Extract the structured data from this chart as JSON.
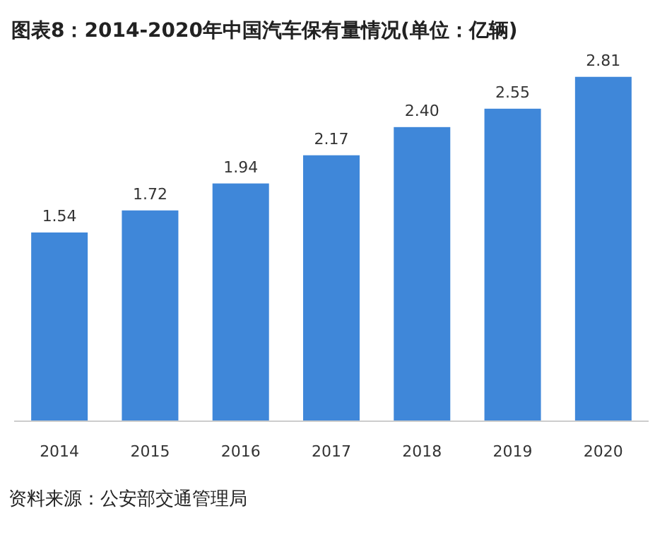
{
  "chart_data": {
    "type": "bar",
    "title": "图表8：2014-2020年中国汽车保有量情况(单位：亿辆)",
    "categories": [
      "2014",
      "2015",
      "2016",
      "2017",
      "2018",
      "2019",
      "2020"
    ],
    "values": [
      1.54,
      1.72,
      1.94,
      2.17,
      2.4,
      2.55,
      2.81
    ],
    "value_labels": [
      "1.54",
      "1.72",
      "1.94",
      "2.17",
      "2.40",
      "2.55",
      "2.81"
    ],
    "color": "#3f87d9",
    "annotations": [
      "资料来源：公安部交通管理局"
    ]
  }
}
